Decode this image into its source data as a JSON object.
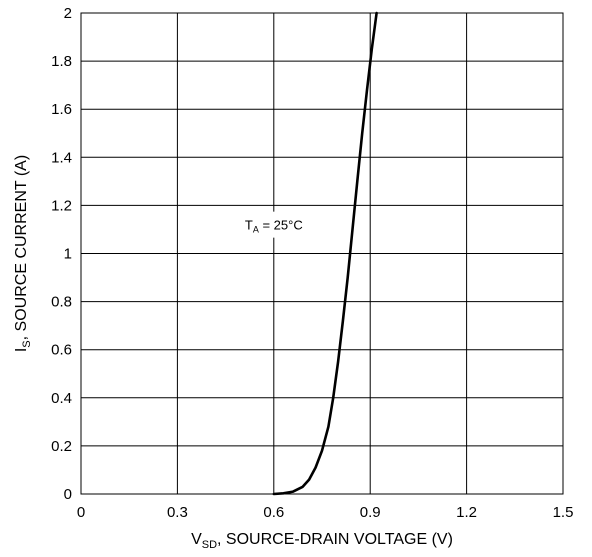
{
  "chart_data": {
    "type": "line",
    "xlabel": {
      "main": "V",
      "sub": "SD",
      "rest": ", SOURCE-DRAIN VOLTAGE (V)"
    },
    "ylabel": {
      "main": "I",
      "sub": "S",
      "rest": ", SOURCE CURRENT (A)"
    },
    "xlim": [
      0,
      1.5
    ],
    "ylim": [
      0,
      2
    ],
    "x_ticks": [
      "0",
      "0.3",
      "0.6",
      "0.9",
      "1.2",
      "1.5"
    ],
    "y_ticks": [
      "0",
      "0.2",
      "0.4",
      "0.6",
      "0.8",
      "1",
      "1.2",
      "1.4",
      "1.6",
      "1.8",
      "2"
    ],
    "grid": true,
    "annotation": {
      "main": "T",
      "sub": "A",
      "rest": " = 25°C",
      "x": 0.6,
      "y": 1.12
    },
    "series": [
      {
        "points": [
          [
            0.6,
            0.0
          ],
          [
            0.63,
            0.003
          ],
          [
            0.66,
            0.01
          ],
          [
            0.69,
            0.03
          ],
          [
            0.71,
            0.06
          ],
          [
            0.73,
            0.11
          ],
          [
            0.75,
            0.18
          ],
          [
            0.77,
            0.28
          ],
          [
            0.785,
            0.4
          ],
          [
            0.8,
            0.55
          ],
          [
            0.815,
            0.72
          ],
          [
            0.83,
            0.9
          ],
          [
            0.845,
            1.1
          ],
          [
            0.86,
            1.3
          ],
          [
            0.875,
            1.5
          ],
          [
            0.89,
            1.68
          ],
          [
            0.905,
            1.85
          ],
          [
            0.92,
            2.0
          ]
        ]
      }
    ]
  }
}
